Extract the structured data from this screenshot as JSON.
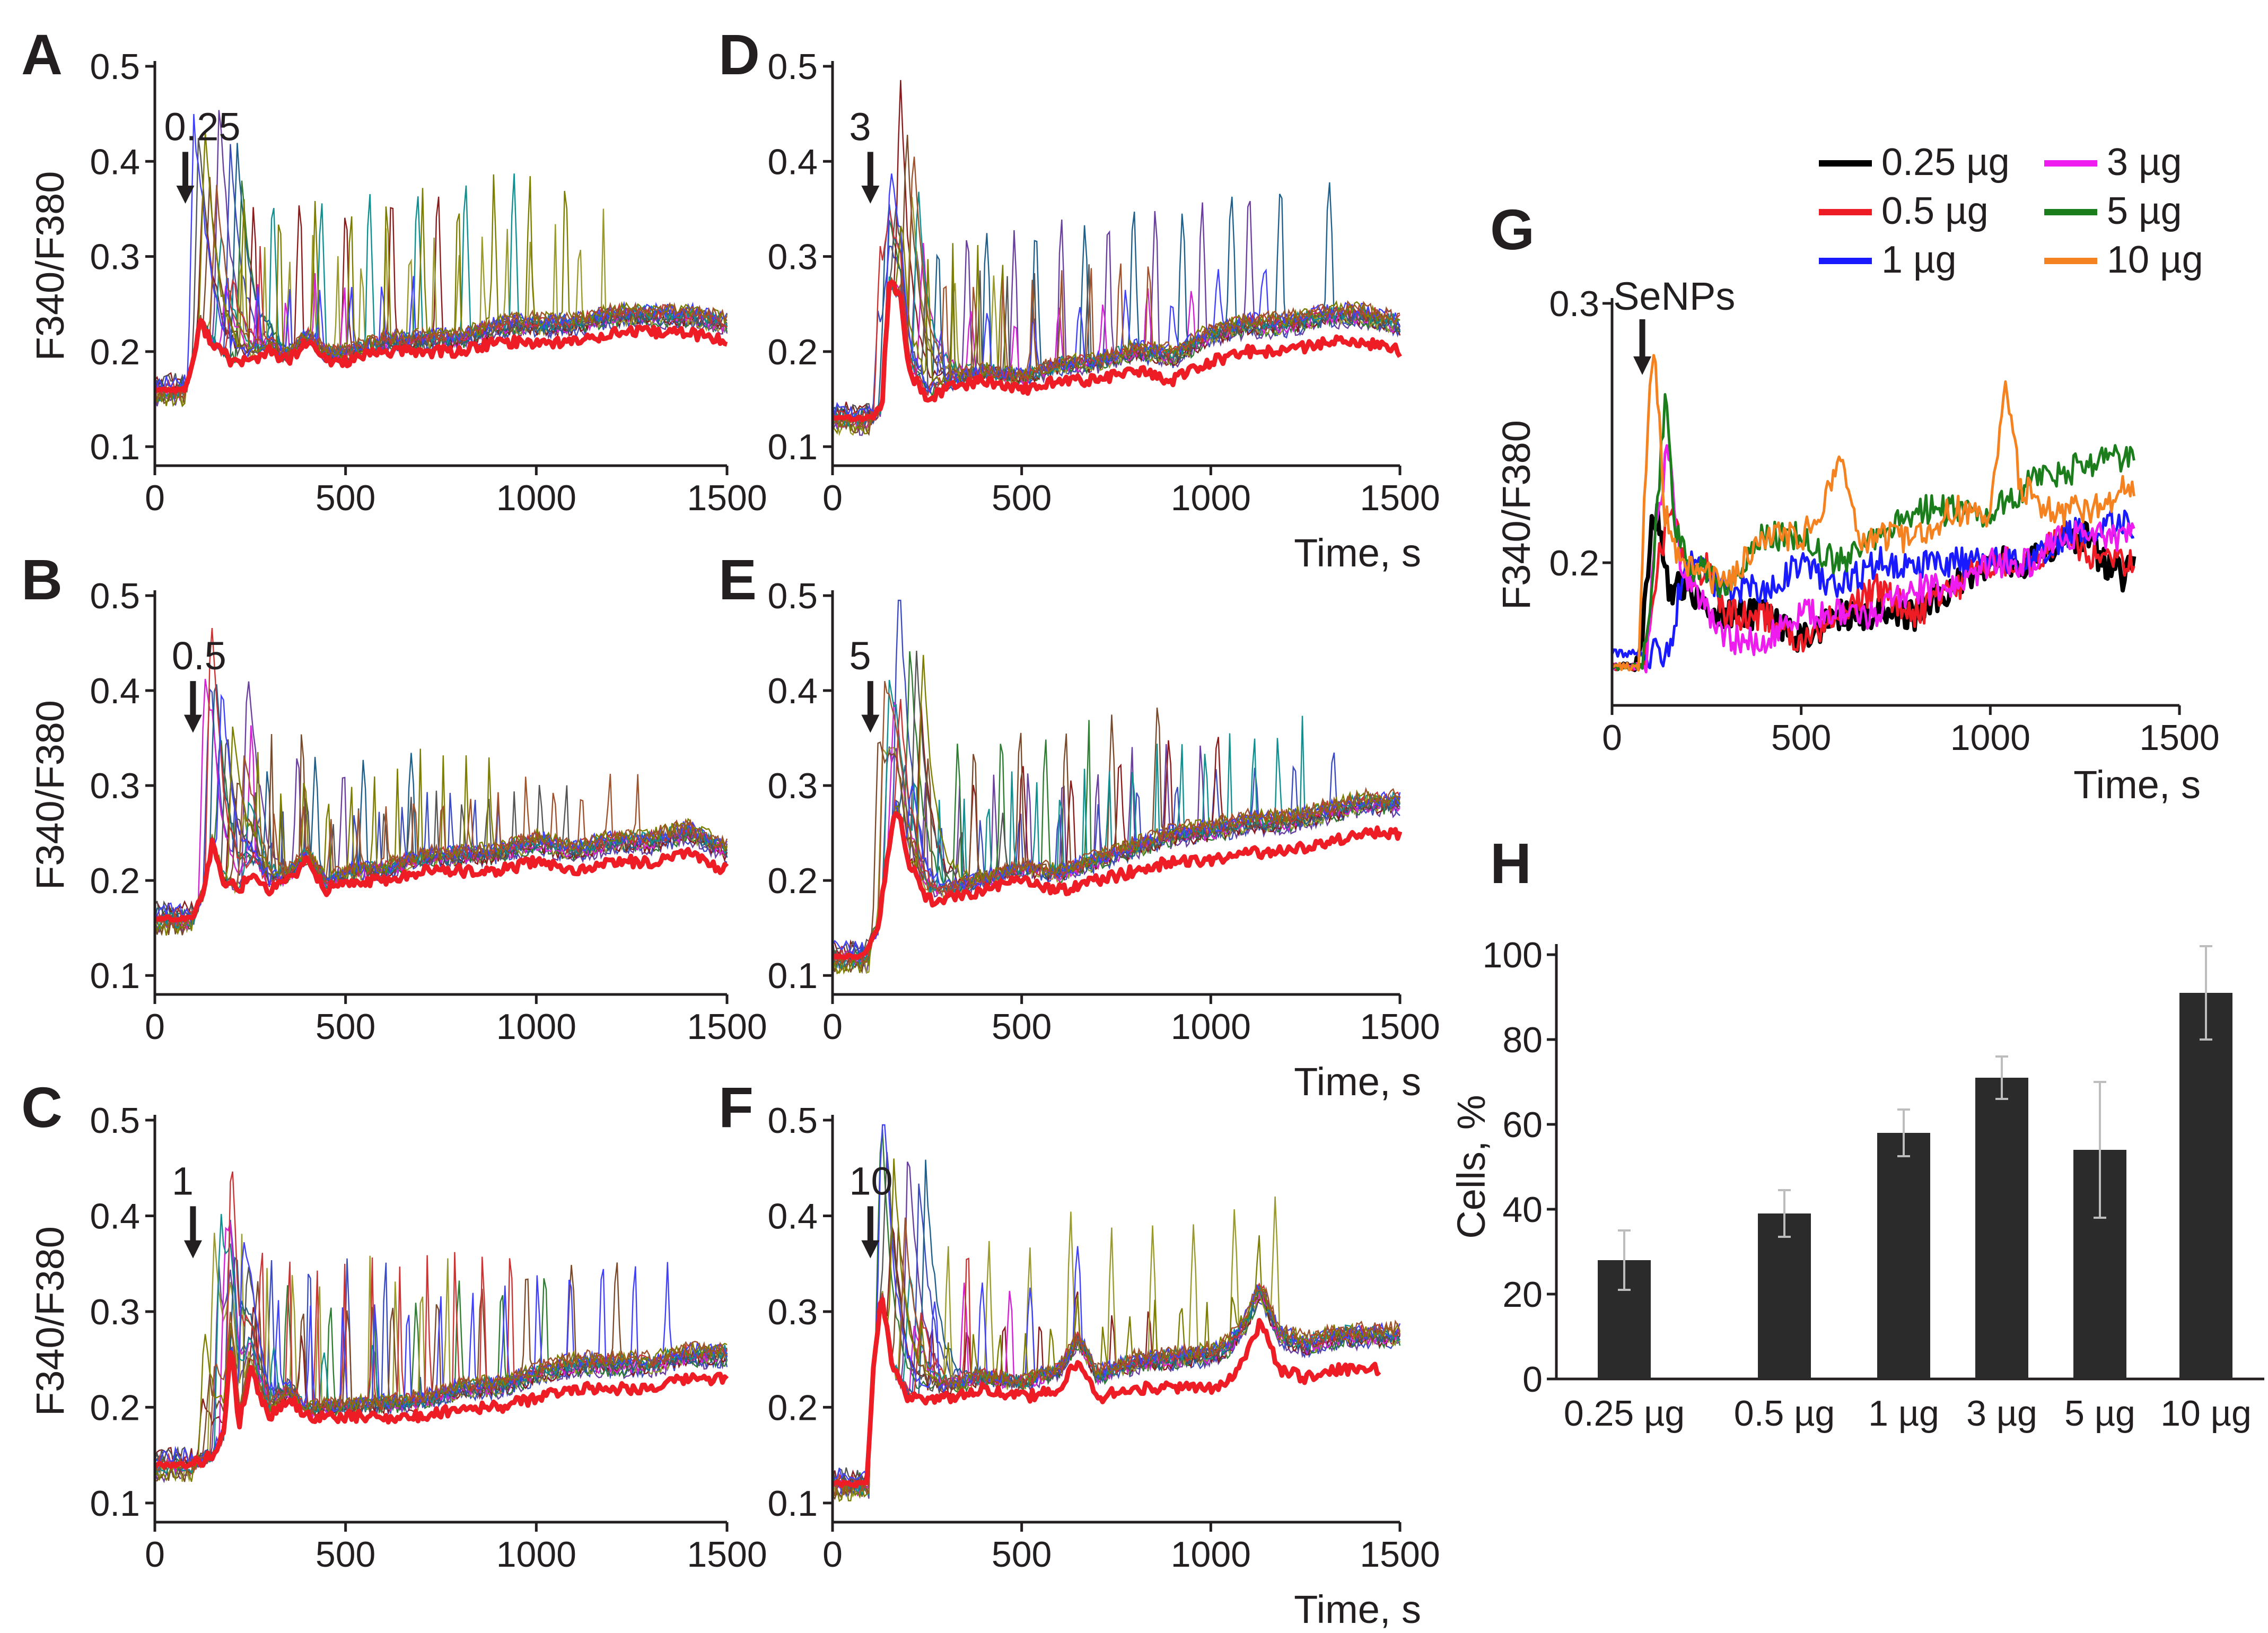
{
  "colors": {
    "mean": "#ee1c24",
    "axis": "#231f20",
    "arrow": "#231f20",
    "bar": "#2b2b2b",
    "errorbar": "#bdbdbd",
    "trace_palette": [
      "#6b3fa0",
      "#3b4cc0",
      "#2e7d32",
      "#8b1a1a",
      "#9a9a2e",
      "#d51ed5",
      "#1f5f8b",
      "#555555",
      "#7a4a2a",
      "#0f8f8f",
      "#cc3333",
      "#4040ff",
      "#7d7d00",
      "#a0522d"
    ],
    "legend": {
      "0.25 µg": "#000000",
      "0.5 µg": "#ee1c24",
      "1 µg": "#1a1aff",
      "3 µg": "#ee1cee",
      "5 µg": "#1c7d1c",
      "10 µg": "#f58220"
    }
  },
  "chart_data": [
    {
      "panel": "A",
      "type": "line",
      "title": "",
      "xlabel": "",
      "ylabel": "F340/F380",
      "xlim": [
        0,
        1500
      ],
      "ylim": [
        0.08,
        0.5
      ],
      "xticks": [
        "0",
        "500",
        "1000",
        "1500"
      ],
      "yticks": [
        "0.1",
        "0.2",
        "0.3",
        "0.4",
        "0.5"
      ],
      "annotation": "0.25",
      "application_time": 80,
      "individual_traces": 14,
      "mean_trace": {
        "name": "mean",
        "x": [
          0,
          60,
          80,
          100,
          120,
          150,
          200,
          250,
          300,
          350,
          400,
          450,
          500,
          600,
          700,
          800,
          900,
          1000,
          1100,
          1200,
          1300,
          1400,
          1500
        ],
        "y": [
          0.16,
          0.16,
          0.16,
          0.19,
          0.23,
          0.21,
          0.19,
          0.19,
          0.2,
          0.19,
          0.21,
          0.19,
          0.19,
          0.2,
          0.2,
          0.2,
          0.21,
          0.21,
          0.21,
          0.22,
          0.22,
          0.22,
          0.21
        ]
      }
    },
    {
      "panel": "B",
      "type": "line",
      "title": "",
      "xlabel": "",
      "ylabel": "F340/F380",
      "xlim": [
        0,
        1500
      ],
      "ylim": [
        0.08,
        0.5
      ],
      "xticks": [
        "0",
        "500",
        "1000",
        "1500"
      ],
      "yticks": [
        "0.1",
        "0.2",
        "0.3",
        "0.4",
        "0.5"
      ],
      "annotation": "0.5",
      "application_time": 100,
      "individual_traces": 14,
      "mean_trace": {
        "name": "mean",
        "x": [
          0,
          100,
          130,
          150,
          180,
          220,
          260,
          300,
          350,
          400,
          450,
          500,
          600,
          700,
          800,
          900,
          1000,
          1100,
          1200,
          1300,
          1400,
          1500
        ],
        "y": [
          0.16,
          0.16,
          0.19,
          0.24,
          0.2,
          0.19,
          0.21,
          0.19,
          0.2,
          0.22,
          0.19,
          0.2,
          0.2,
          0.21,
          0.21,
          0.21,
          0.22,
          0.21,
          0.22,
          0.22,
          0.23,
          0.21
        ]
      }
    },
    {
      "panel": "C",
      "type": "line",
      "title": "",
      "xlabel": "",
      "ylabel": "F340/F380",
      "xlim": [
        0,
        1500
      ],
      "ylim": [
        0.08,
        0.5
      ],
      "xticks": [
        "0",
        "500",
        "1000",
        "1500"
      ],
      "yticks": [
        "0.1",
        "0.2",
        "0.3",
        "0.4",
        "0.5"
      ],
      "annotation": "1",
      "application_time": 100,
      "individual_traces": 14,
      "mean_trace": {
        "name": "mean",
        "x": [
          0,
          100,
          150,
          180,
          200,
          220,
          250,
          300,
          350,
          400,
          500,
          600,
          700,
          800,
          900,
          1000,
          1100,
          1200,
          1300,
          1400,
          1500
        ],
        "y": [
          0.14,
          0.14,
          0.15,
          0.17,
          0.27,
          0.18,
          0.24,
          0.19,
          0.21,
          0.19,
          0.19,
          0.19,
          0.19,
          0.2,
          0.2,
          0.21,
          0.22,
          0.22,
          0.22,
          0.23,
          0.23
        ]
      }
    },
    {
      "panel": "D",
      "type": "line",
      "title": "",
      "xlabel": "Time, s",
      "ylabel": "",
      "xlim": [
        0,
        1500
      ],
      "ylim": [
        0.08,
        0.5
      ],
      "xticks": [
        "0",
        "500",
        "1000",
        "1500"
      ],
      "yticks": [
        "0.1",
        "0.2",
        "0.3",
        "0.4",
        "0.5"
      ],
      "annotation": "3",
      "application_time": 100,
      "individual_traces": 14,
      "mean_trace": {
        "name": "mean",
        "x": [
          0,
          100,
          130,
          150,
          180,
          200,
          250,
          300,
          400,
          500,
          600,
          700,
          800,
          900,
          1000,
          1100,
          1200,
          1300,
          1400,
          1500
        ],
        "y": [
          0.13,
          0.13,
          0.14,
          0.27,
          0.26,
          0.18,
          0.15,
          0.16,
          0.17,
          0.16,
          0.17,
          0.17,
          0.18,
          0.17,
          0.19,
          0.2,
          0.2,
          0.21,
          0.21,
          0.2
        ]
      }
    },
    {
      "panel": "E",
      "type": "line",
      "title": "",
      "xlabel": "Time, s",
      "ylabel": "",
      "xlim": [
        0,
        1500
      ],
      "ylim": [
        0.08,
        0.5
      ],
      "xticks": [
        "0",
        "500",
        "1000",
        "1500"
      ],
      "yticks": [
        "0.1",
        "0.2",
        "0.3",
        "0.4",
        "0.5"
      ],
      "annotation": "5",
      "application_time": 100,
      "individual_traces": 14,
      "mean_trace": {
        "name": "mean",
        "x": [
          0,
          80,
          120,
          150,
          170,
          200,
          250,
          300,
          400,
          500,
          600,
          700,
          800,
          900,
          1000,
          1100,
          1200,
          1300,
          1400,
          1500
        ],
        "y": [
          0.12,
          0.12,
          0.15,
          0.24,
          0.28,
          0.22,
          0.18,
          0.18,
          0.19,
          0.2,
          0.19,
          0.2,
          0.21,
          0.22,
          0.22,
          0.23,
          0.23,
          0.24,
          0.25,
          0.25
        ]
      }
    },
    {
      "panel": "F",
      "type": "line",
      "title": "",
      "xlabel": "Time, s",
      "ylabel": "",
      "xlim": [
        0,
        1500
      ],
      "ylim": [
        0.08,
        0.5
      ],
      "xticks": [
        "0",
        "500",
        "1000",
        "1500"
      ],
      "yticks": [
        "0.1",
        "0.2",
        "0.3",
        "0.4",
        "0.5"
      ],
      "annotation": "10",
      "application_time": 100,
      "individual_traces": 14,
      "mean_trace": {
        "name": "mean",
        "x": [
          0,
          90,
          110,
          130,
          160,
          200,
          300,
          400,
          500,
          600,
          650,
          700,
          800,
          900,
          1000,
          1050,
          1100,
          1130,
          1180,
          1250,
          1350,
          1450
        ],
        "y": [
          0.12,
          0.12,
          0.25,
          0.32,
          0.24,
          0.21,
          0.21,
          0.22,
          0.21,
          0.22,
          0.25,
          0.21,
          0.22,
          0.22,
          0.22,
          0.23,
          0.26,
          0.29,
          0.24,
          0.23,
          0.24,
          0.24
        ]
      }
    },
    {
      "panel": "G",
      "type": "line",
      "title": "",
      "xlabel": "Time, s",
      "ylabel": "F340/F380",
      "xlim": [
        0,
        1500
      ],
      "ylim": [
        0.145,
        0.3
      ],
      "xticks": [
        "0",
        "500",
        "1000",
        "1500"
      ],
      "yticks": [
        "0.2",
        "0.3"
      ],
      "annotation": "SeNPs",
      "application_time": 80,
      "series": [
        {
          "name": "0.25 µg",
          "x": [
            0,
            60,
            80,
            100,
            120,
            150,
            200,
            300,
            400,
            500,
            600,
            700,
            800,
            900,
            1000,
            1100,
            1200,
            1250,
            1300,
            1350,
            1380
          ],
          "y": [
            0.16,
            0.16,
            0.17,
            0.21,
            0.22,
            0.19,
            0.19,
            0.18,
            0.18,
            0.17,
            0.18,
            0.18,
            0.18,
            0.19,
            0.2,
            0.2,
            0.21,
            0.21,
            0.2,
            0.195,
            0.2
          ]
        },
        {
          "name": "0.5 µg",
          "x": [
            0,
            80,
            120,
            160,
            200,
            250,
            300,
            400,
            500,
            600,
            700,
            800,
            900,
            1000,
            1100,
            1200,
            1300,
            1380
          ],
          "y": [
            0.16,
            0.16,
            0.2,
            0.22,
            0.19,
            0.2,
            0.18,
            0.18,
            0.17,
            0.18,
            0.19,
            0.18,
            0.19,
            0.2,
            0.2,
            0.21,
            0.2,
            0.2
          ]
        },
        {
          "name": "1 µg",
          "x": [
            0,
            150,
            180,
            200,
            300,
            400,
            500,
            600,
            700,
            800,
            900,
            1000,
            1100,
            1200,
            1300,
            1380
          ],
          "y": [
            0.165,
            0.165,
            0.19,
            0.2,
            0.19,
            0.19,
            0.2,
            0.19,
            0.2,
            0.2,
            0.2,
            0.2,
            0.2,
            0.21,
            0.215,
            0.215
          ]
        },
        {
          "name": "3 µg",
          "x": [
            0,
            90,
            120,
            150,
            180,
            220,
            300,
            400,
            500,
            600,
            700,
            800,
            900,
            1000,
            1100,
            1200,
            1300,
            1380
          ],
          "y": [
            0.16,
            0.16,
            0.22,
            0.245,
            0.2,
            0.19,
            0.17,
            0.17,
            0.18,
            0.18,
            0.18,
            0.19,
            0.19,
            0.2,
            0.2,
            0.21,
            0.21,
            0.21
          ]
        },
        {
          "name": "5 µg",
          "x": [
            0,
            80,
            110,
            140,
            170,
            200,
            300,
            400,
            500,
            600,
            700,
            800,
            900,
            1000,
            1100,
            1200,
            1300,
            1380
          ],
          "y": [
            0.16,
            0.16,
            0.2,
            0.265,
            0.21,
            0.2,
            0.19,
            0.21,
            0.21,
            0.2,
            0.21,
            0.22,
            0.22,
            0.22,
            0.23,
            0.235,
            0.24,
            0.24
          ]
        },
        {
          "name": "10 µg",
          "x": [
            0,
            70,
            90,
            110,
            140,
            170,
            200,
            300,
            400,
            500,
            550,
            600,
            650,
            700,
            800,
            900,
            1000,
            1040,
            1080,
            1150,
            1250,
            1380
          ],
          "y": [
            0.16,
            0.16,
            0.24,
            0.285,
            0.22,
            0.2,
            0.2,
            0.19,
            0.21,
            0.21,
            0.22,
            0.24,
            0.21,
            0.21,
            0.21,
            0.22,
            0.22,
            0.265,
            0.23,
            0.22,
            0.22,
            0.23
          ]
        }
      ]
    },
    {
      "panel": "H",
      "type": "bar",
      "title": "",
      "xlabel": "",
      "ylabel": "Cells, %",
      "ylim": [
        0,
        100
      ],
      "yticks": [
        "0",
        "20",
        "40",
        "60",
        "80",
        "100"
      ],
      "categories": [
        "0.25 µg",
        "0.5 µg",
        "1 µg",
        "3 µg",
        "5 µg",
        "10 µg"
      ],
      "values": [
        28,
        39,
        58,
        71,
        54,
        91
      ],
      "errors": [
        7,
        5.5,
        5.5,
        5,
        16,
        11
      ]
    }
  ]
}
